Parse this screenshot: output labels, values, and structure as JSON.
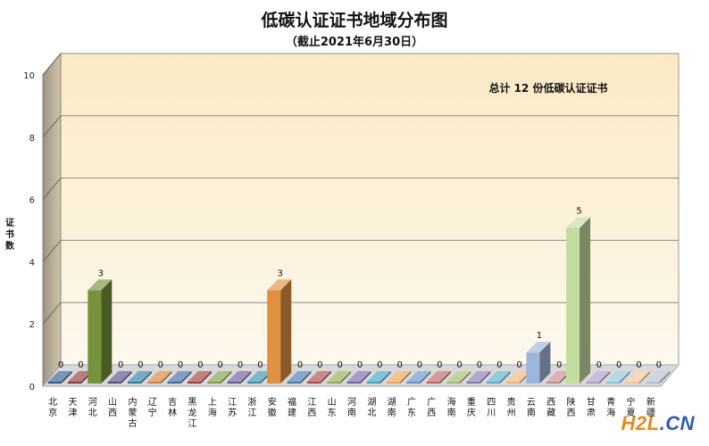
{
  "chart_data": {
    "type": "bar",
    "title": "低碳认证证书地域分布图",
    "subtitle": "（截止2021年6月30日）",
    "xlabel": "",
    "ylabel": "证书数",
    "ylim": [
      0,
      10
    ],
    "yticks": [
      0,
      2,
      4,
      6,
      8,
      10
    ],
    "grid": true,
    "annotation": "总计 12 份低碳认证证书",
    "categories": [
      "北京",
      "天津",
      "河北",
      "山西",
      "内蒙古",
      "辽宁",
      "吉林",
      "黑龙江",
      "上海",
      "江苏",
      "浙江",
      "安徽",
      "福建",
      "江西",
      "山东",
      "河南",
      "湖北",
      "湖南",
      "广东",
      "广西",
      "海南",
      "重庆",
      "四川",
      "贵州",
      "云南",
      "西藏",
      "陕西",
      "甘肃",
      "青海",
      "宁夏",
      "新疆"
    ],
    "values": [
      0,
      0,
      3,
      0,
      0,
      0,
      0,
      0,
      0,
      0,
      0,
      3,
      0,
      0,
      0,
      0,
      0,
      0,
      0,
      0,
      0,
      0,
      0,
      0,
      1,
      0,
      5,
      0,
      0,
      0,
      0
    ],
    "colors": [
      "#2e5a8c",
      "#8b3a3a",
      "#76923c",
      "#5b4a85",
      "#2a7f9e",
      "#d5803a",
      "#3e6aa1",
      "#a03c3c",
      "#809f46",
      "#6b5896",
      "#3590ad",
      "#e0913f",
      "#4a77b0",
      "#b04848",
      "#8dac52",
      "#7966a4",
      "#3ea2c0",
      "#eea24d",
      "#6a8fc4",
      "#bf6262",
      "#9fbc68",
      "#8978b0",
      "#59b1cb",
      "#f2b574",
      "#9fb6dc",
      "#c98a8a",
      "#c3dca0",
      "#a99cc6",
      "#8ec5d8",
      "#f5c497",
      "#b0bdd8"
    ]
  },
  "watermark": {
    "part1": "H2L",
    "part2": ".CN"
  }
}
